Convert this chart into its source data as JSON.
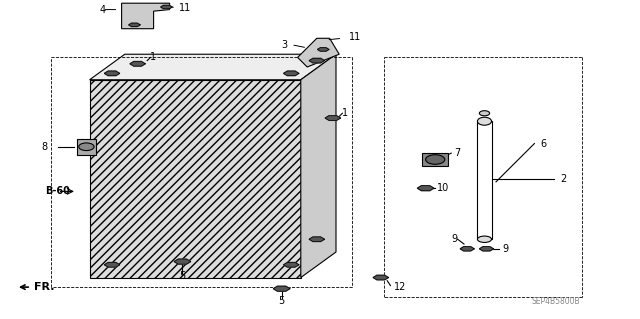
{
  "bg_color": "#ffffff",
  "line_color": "#000000",
  "fig_width": 6.4,
  "fig_height": 3.19,
  "watermark": "SEP4B5800B",
  "fr_label": "FR.",
  "b60_label": "B-60",
  "default_lw": 0.8
}
